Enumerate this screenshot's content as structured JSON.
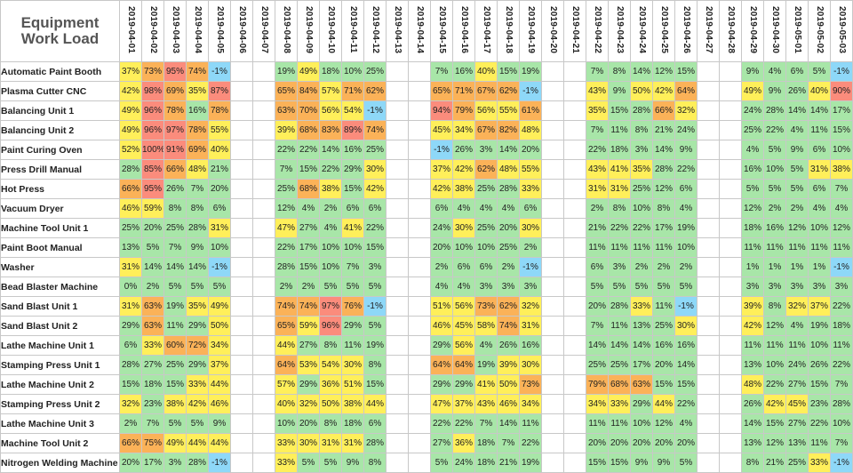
{
  "title_lines": [
    "Equipment",
    "Work Load"
  ],
  "dates": [
    "2019-04-01",
    "2019-04-02",
    "2019-04-03",
    "2019-04-04",
    "2019-04-05",
    "2019-04-06",
    "2019-04-07",
    "2019-04-08",
    "2019-04-09",
    "2019-04-10",
    "2019-04-11",
    "2019-04-12",
    "2019-04-13",
    "2019-04-14",
    "2019-04-15",
    "2019-04-16",
    "2019-04-17",
    "2019-04-18",
    "2019-04-19",
    "2019-04-20",
    "2019-04-21",
    "2019-04-22",
    "2019-04-23",
    "2019-04-24",
    "2019-04-25",
    "2019-04-26",
    "2019-04-27",
    "2019-04-28",
    "2019-04-29",
    "2019-04-30",
    "2019-05-01",
    "2019-05-02",
    "2019-05-03"
  ],
  "color_scale": {
    "negative": "#8ed8f8",
    "low": "#a8e6a8",
    "mid": "#ffef5a",
    "high": "#fbb258",
    "very_high": "#fb8c7c"
  },
  "machines": [
    {
      "name": "Automatic Paint Booth",
      "loads": [
        "37%",
        "73%",
        "95%",
        "74%",
        "-1%",
        "",
        "",
        "19%",
        "49%",
        "18%",
        "10%",
        "25%",
        "",
        "",
        "7%",
        "16%",
        "40%",
        "15%",
        "19%",
        "",
        "",
        "7%",
        "8%",
        "14%",
        "12%",
        "15%",
        "",
        "",
        "9%",
        "4%",
        "6%",
        "5%",
        "-1%"
      ]
    },
    {
      "name": "Plasma Cutter CNC",
      "loads": [
        "42%",
        "98%",
        "69%",
        "35%",
        "87%",
        "",
        "",
        "65%",
        "84%",
        "57%",
        "71%",
        "62%",
        "",
        "",
        "65%",
        "71%",
        "67%",
        "62%",
        "-1%",
        "",
        "",
        "43%",
        "9%",
        "50%",
        "42%",
        "64%",
        "",
        "",
        "49%",
        "9%",
        "26%",
        "40%",
        "90%"
      ]
    },
    {
      "name": "Balancing Unit 1",
      "loads": [
        "49%",
        "96%",
        "78%",
        "16%",
        "78%",
        "",
        "",
        "63%",
        "70%",
        "56%",
        "54%",
        "-1%",
        "",
        "",
        "94%",
        "79%",
        "56%",
        "55%",
        "61%",
        "",
        "",
        "35%",
        "15%",
        "28%",
        "66%",
        "32%",
        "",
        "",
        "24%",
        "28%",
        "14%",
        "14%",
        "17%"
      ]
    },
    {
      "name": "Balancing Unit 2",
      "loads": [
        "49%",
        "96%",
        "97%",
        "78%",
        "55%",
        "",
        "",
        "39%",
        "68%",
        "83%",
        "89%",
        "74%",
        "",
        "",
        "45%",
        "34%",
        "67%",
        "82%",
        "48%",
        "",
        "",
        "7%",
        "11%",
        "8%",
        "21%",
        "24%",
        "",
        "",
        "25%",
        "22%",
        "4%",
        "11%",
        "15%"
      ]
    },
    {
      "name": "Paint Curing Oven",
      "loads": [
        "52%",
        "100%",
        "91%",
        "69%",
        "40%",
        "",
        "",
        "22%",
        "22%",
        "14%",
        "16%",
        "25%",
        "",
        "",
        "-1%",
        "26%",
        "3%",
        "14%",
        "20%",
        "",
        "",
        "22%",
        "18%",
        "3%",
        "14%",
        "9%",
        "",
        "",
        "4%",
        "5%",
        "9%",
        "6%",
        "10%"
      ]
    },
    {
      "name": "Press Drill Manual",
      "loads": [
        "28%",
        "85%",
        "66%",
        "48%",
        "21%",
        "",
        "",
        "7%",
        "15%",
        "22%",
        "29%",
        "30%",
        "",
        "",
        "37%",
        "42%",
        "62%",
        "48%",
        "55%",
        "",
        "",
        "43%",
        "41%",
        "35%",
        "28%",
        "22%",
        "",
        "",
        "16%",
        "10%",
        "5%",
        "31%",
        "38%"
      ]
    },
    {
      "name": "Hot Press",
      "loads": [
        "66%",
        "95%",
        "26%",
        "7%",
        "20%",
        "",
        "",
        "25%",
        "68%",
        "38%",
        "15%",
        "42%",
        "",
        "",
        "42%",
        "38%",
        "25%",
        "28%",
        "33%",
        "",
        "",
        "31%",
        "31%",
        "25%",
        "12%",
        "6%",
        "",
        "",
        "5%",
        "5%",
        "5%",
        "6%",
        "7%"
      ]
    },
    {
      "name": "Vacuum Dryer",
      "loads": [
        "46%",
        "59%",
        "8%",
        "8%",
        "6%",
        "",
        "",
        "12%",
        "4%",
        "2%",
        "6%",
        "6%",
        "",
        "",
        "6%",
        "4%",
        "4%",
        "4%",
        "6%",
        "",
        "",
        "2%",
        "8%",
        "10%",
        "8%",
        "4%",
        "",
        "",
        "12%",
        "2%",
        "2%",
        "4%",
        "4%"
      ]
    },
    {
      "name": "Machine Tool Unit 1",
      "loads": [
        "25%",
        "20%",
        "25%",
        "28%",
        "31%",
        "",
        "",
        "47%",
        "27%",
        "4%",
        "41%",
        "22%",
        "",
        "",
        "24%",
        "30%",
        "25%",
        "20%",
        "30%",
        "",
        "",
        "21%",
        "22%",
        "22%",
        "17%",
        "19%",
        "",
        "",
        "18%",
        "16%",
        "12%",
        "10%",
        "12%"
      ]
    },
    {
      "name": "Paint Boot Manual",
      "loads": [
        "13%",
        "5%",
        "7%",
        "9%",
        "10%",
        "",
        "",
        "22%",
        "17%",
        "10%",
        "10%",
        "15%",
        "",
        "",
        "20%",
        "10%",
        "10%",
        "25%",
        "2%",
        "",
        "",
        "11%",
        "11%",
        "11%",
        "11%",
        "10%",
        "",
        "",
        "11%",
        "11%",
        "11%",
        "11%",
        "11%"
      ]
    },
    {
      "name": "Washer",
      "loads": [
        "31%",
        "14%",
        "14%",
        "14%",
        "-1%",
        "",
        "",
        "28%",
        "15%",
        "10%",
        "7%",
        "3%",
        "",
        "",
        "2%",
        "6%",
        "6%",
        "2%",
        "-1%",
        "",
        "",
        "6%",
        "3%",
        "2%",
        "2%",
        "2%",
        "",
        "",
        "1%",
        "1%",
        "1%",
        "1%",
        "-1%"
      ]
    },
    {
      "name": "Bead Blaster Machine",
      "loads": [
        "0%",
        "2%",
        "5%",
        "5%",
        "5%",
        "",
        "",
        "2%",
        "2%",
        "5%",
        "5%",
        "5%",
        "",
        "",
        "4%",
        "4%",
        "3%",
        "3%",
        "3%",
        "",
        "",
        "5%",
        "5%",
        "5%",
        "5%",
        "5%",
        "",
        "",
        "3%",
        "3%",
        "3%",
        "3%",
        "3%"
      ]
    },
    {
      "name": "Sand Blast Unit 1",
      "loads": [
        "31%",
        "63%",
        "19%",
        "35%",
        "49%",
        "",
        "",
        "74%",
        "74%",
        "97%",
        "76%",
        "-1%",
        "",
        "",
        "51%",
        "56%",
        "73%",
        "62%",
        "32%",
        "",
        "",
        "20%",
        "28%",
        "33%",
        "11%",
        "-1%",
        "",
        "",
        "39%",
        "8%",
        "32%",
        "37%",
        "22%"
      ]
    },
    {
      "name": "Sand Blast Unit 2",
      "loads": [
        "29%",
        "63%",
        "11%",
        "29%",
        "50%",
        "",
        "",
        "65%",
        "59%",
        "96%",
        "29%",
        "5%",
        "",
        "",
        "46%",
        "45%",
        "58%",
        "74%",
        "31%",
        "",
        "",
        "7%",
        "11%",
        "13%",
        "25%",
        "30%",
        "",
        "",
        "42%",
        "12%",
        "4%",
        "19%",
        "18%"
      ]
    },
    {
      "name": "Lathe Machine Unit 1",
      "loads": [
        "6%",
        "33%",
        "60%",
        "72%",
        "34%",
        "",
        "",
        "44%",
        "27%",
        "8%",
        "11%",
        "19%",
        "",
        "",
        "29%",
        "56%",
        "4%",
        "26%",
        "16%",
        "",
        "",
        "14%",
        "14%",
        "14%",
        "16%",
        "16%",
        "",
        "",
        "11%",
        "11%",
        "11%",
        "10%",
        "11%"
      ]
    },
    {
      "name": "Stamping Press Unit 1",
      "loads": [
        "28%",
        "27%",
        "25%",
        "29%",
        "37%",
        "",
        "",
        "64%",
        "53%",
        "54%",
        "30%",
        "8%",
        "",
        "",
        "64%",
        "64%",
        "19%",
        "39%",
        "30%",
        "",
        "",
        "25%",
        "25%",
        "17%",
        "20%",
        "14%",
        "",
        "",
        "13%",
        "10%",
        "24%",
        "26%",
        "22%"
      ]
    },
    {
      "name": "Lathe Machine Unit 2",
      "loads": [
        "15%",
        "18%",
        "15%",
        "33%",
        "44%",
        "",
        "",
        "57%",
        "29%",
        "36%",
        "51%",
        "15%",
        "",
        "",
        "29%",
        "29%",
        "41%",
        "50%",
        "73%",
        "",
        "",
        "79%",
        "68%",
        "63%",
        "15%",
        "15%",
        "",
        "",
        "48%",
        "22%",
        "27%",
        "15%",
        "7%"
      ]
    },
    {
      "name": "Stamping Press Unit 2",
      "loads": [
        "32%",
        "23%",
        "38%",
        "42%",
        "46%",
        "",
        "",
        "40%",
        "32%",
        "50%",
        "38%",
        "44%",
        "",
        "",
        "47%",
        "37%",
        "43%",
        "46%",
        "34%",
        "",
        "",
        "34%",
        "33%",
        "29%",
        "44%",
        "22%",
        "",
        "",
        "26%",
        "42%",
        "45%",
        "23%",
        "28%"
      ]
    },
    {
      "name": "Lathe Machine Unit 3",
      "loads": [
        "2%",
        "7%",
        "5%",
        "5%",
        "9%",
        "",
        "",
        "10%",
        "20%",
        "8%",
        "18%",
        "6%",
        "",
        "",
        "22%",
        "22%",
        "7%",
        "14%",
        "11%",
        "",
        "",
        "11%",
        "11%",
        "10%",
        "12%",
        "4%",
        "",
        "",
        "14%",
        "15%",
        "27%",
        "22%",
        "10%"
      ]
    },
    {
      "name": "Machine Tool Unit 2",
      "loads": [
        "66%",
        "75%",
        "49%",
        "44%",
        "44%",
        "",
        "",
        "33%",
        "30%",
        "31%",
        "31%",
        "28%",
        "",
        "",
        "27%",
        "36%",
        "18%",
        "7%",
        "22%",
        "",
        "",
        "20%",
        "20%",
        "20%",
        "20%",
        "20%",
        "",
        "",
        "13%",
        "12%",
        "13%",
        "11%",
        "7%"
      ]
    },
    {
      "name": "Nitrogen Welding Machine",
      "loads": [
        "20%",
        "17%",
        "3%",
        "28%",
        "-1%",
        "",
        "",
        "33%",
        "5%",
        "5%",
        "9%",
        "8%",
        "",
        "",
        "5%",
        "24%",
        "18%",
        "21%",
        "19%",
        "",
        "",
        "15%",
        "15%",
        "9%",
        "9%",
        "5%",
        "",
        "",
        "8%",
        "21%",
        "25%",
        "33%",
        "-1%"
      ]
    }
  ]
}
